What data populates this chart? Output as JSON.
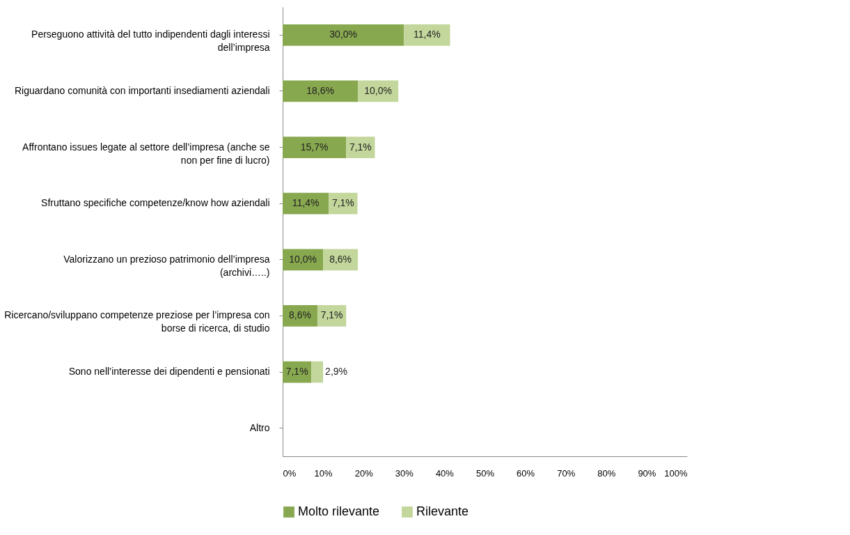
{
  "chart_data": {
    "type": "bar",
    "orientation": "horizontal",
    "stacked": true,
    "categories": [
      "Perseguono attività del tutto indipendenti dagli interessi dell’impresa",
      "Riguardano comunità con importanti insediamenti aziendali",
      "Affrontano issues legate al settore dell’impresa (anche se non per fine di lucro)",
      "Sfruttano specifiche competenze/know how aziendali",
      "Valorizzano un prezioso patrimonio dell’impresa (archivi…..)",
      "Ricercano/sviluppano competenze preziose per l’impresa con borse di ricerca, di studio",
      "Sono nell’interesse dei dipendenti e pensionati",
      "Altro"
    ],
    "series": [
      {
        "name": "Molto rilevante",
        "color": "#88a84f",
        "values": [
          30.0,
          18.6,
          15.7,
          11.4,
          10.0,
          8.6,
          7.1,
          null
        ],
        "value_labels": [
          "30,0%",
          "18,6%",
          "15,7%",
          "11,4%",
          "10,0%",
          "8,6%",
          "7,1%",
          null
        ]
      },
      {
        "name": "Rilevante",
        "color": "#c3d69b",
        "values": [
          11.4,
          10.0,
          7.1,
          7.1,
          8.6,
          7.1,
          2.9,
          null
        ],
        "value_labels": [
          "11,4%",
          "10,0%",
          "7,1%",
          "7,1%",
          "8,6%",
          "7,1%",
          "2,9%",
          null
        ]
      }
    ],
    "xlim": [
      0,
      100
    ],
    "xticks": [
      {
        "value": 0,
        "label": "0%"
      },
      {
        "value": 10,
        "label": "10%"
      },
      {
        "value": 20,
        "label": "20%"
      },
      {
        "value": 30,
        "label": "30%"
      },
      {
        "value": 40,
        "label": "40%"
      },
      {
        "value": 50,
        "label": "50%"
      },
      {
        "value": 60,
        "label": "60%"
      },
      {
        "value": 70,
        "label": "70%"
      },
      {
        "value": 80,
        "label": "80%"
      },
      {
        "value": 90,
        "label": "90%"
      },
      {
        "value": 100,
        "label": "100%"
      }
    ],
    "grid": false,
    "legend": "bottom"
  }
}
